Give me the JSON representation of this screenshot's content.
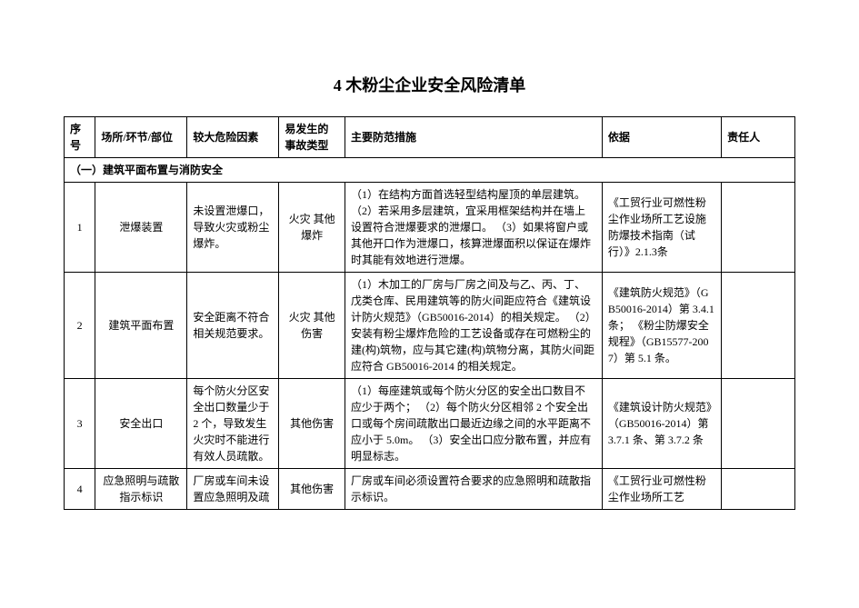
{
  "title": "4  木粉尘企业安全风险清单",
  "columns": {
    "idx": "序号",
    "loc": "场所/环节/部位",
    "risk": "较大危险因素",
    "acc": "易发生的事故类型",
    "meas": "主要防范措施",
    "basis": "依据",
    "resp": "责任人"
  },
  "section_heading": "（一）建筑平面布置与消防安全",
  "rows": {
    "r1": {
      "idx": "1",
      "loc": "泄爆装置",
      "risk": "未设置泄爆口，导致火灾或粉尘爆炸。",
      "acc": "火灾\n其他爆炸",
      "meas": "（1）在结构方面首选轻型结构屋顶的单层建筑。\n（2）若采用多层建筑，宜采用框架结构并在墙上设置符合泄爆要求的泄爆口。\n（3）如果将窗户或其他开口作为泄爆口，核算泄爆面积以保证在爆炸时其能有效地进行泄爆。",
      "basis": "《工贸行业可燃性粉尘作业场所工艺设施防爆技术指南（试行）》2.1.3条",
      "resp": ""
    },
    "r2": {
      "idx": "2",
      "loc": "建筑平面布置",
      "risk": "安全距离不符合相关规范要求。",
      "acc": "火灾\n其他伤害",
      "meas": "（1）木加工的厂房与厂房之间及与乙、丙、丁、戊类仓库、民用建筑等的防火间距应符合《建筑设计防火规范》（GB50016-2014）的相关规定。\n（2）安装有粉尘爆炸危险的工艺设备或存在可燃粉尘的建(构)筑物，应与其它建(构)筑物分离，其防火间距应符合 GB50016-2014 的相关规定。",
      "basis": "《建筑防火规范》（GB50016-2014）第 3.4.1 条；\n《粉尘防爆安全规程》（GB15577-2007）第 5.1 条。",
      "resp": ""
    },
    "r3": {
      "idx": "3",
      "loc": "安全出口",
      "risk": "每个防火分区安全出口数量少于 2 个，导致发生火灾时不能进行有效人员疏散。",
      "acc": "其他伤害",
      "meas": "（1）每座建筑或每个防火分区的安全出口数目不应少于两个；\n（2）每个防火分区相邻 2 个安全出口或每个房间疏散出口最近边缘之间的水平距离不应小于 5.0m。\n（3）安全出口应分散布置，并应有明显标志。",
      "basis": "《建筑设计防火规范》（GB50016-2014）第 3.7.1 条、第 3.7.2 条",
      "resp": ""
    },
    "r4": {
      "idx": "4",
      "loc": "应急照明与疏散指示标识",
      "risk": "厂房或车间未设置应急照明及疏",
      "acc": "其他伤害",
      "meas": "厂房或车间必须设置符合要求的应急照明和疏散指示标识。",
      "basis": "《工贸行业可燃性粉尘作业场所工艺",
      "resp": ""
    }
  }
}
